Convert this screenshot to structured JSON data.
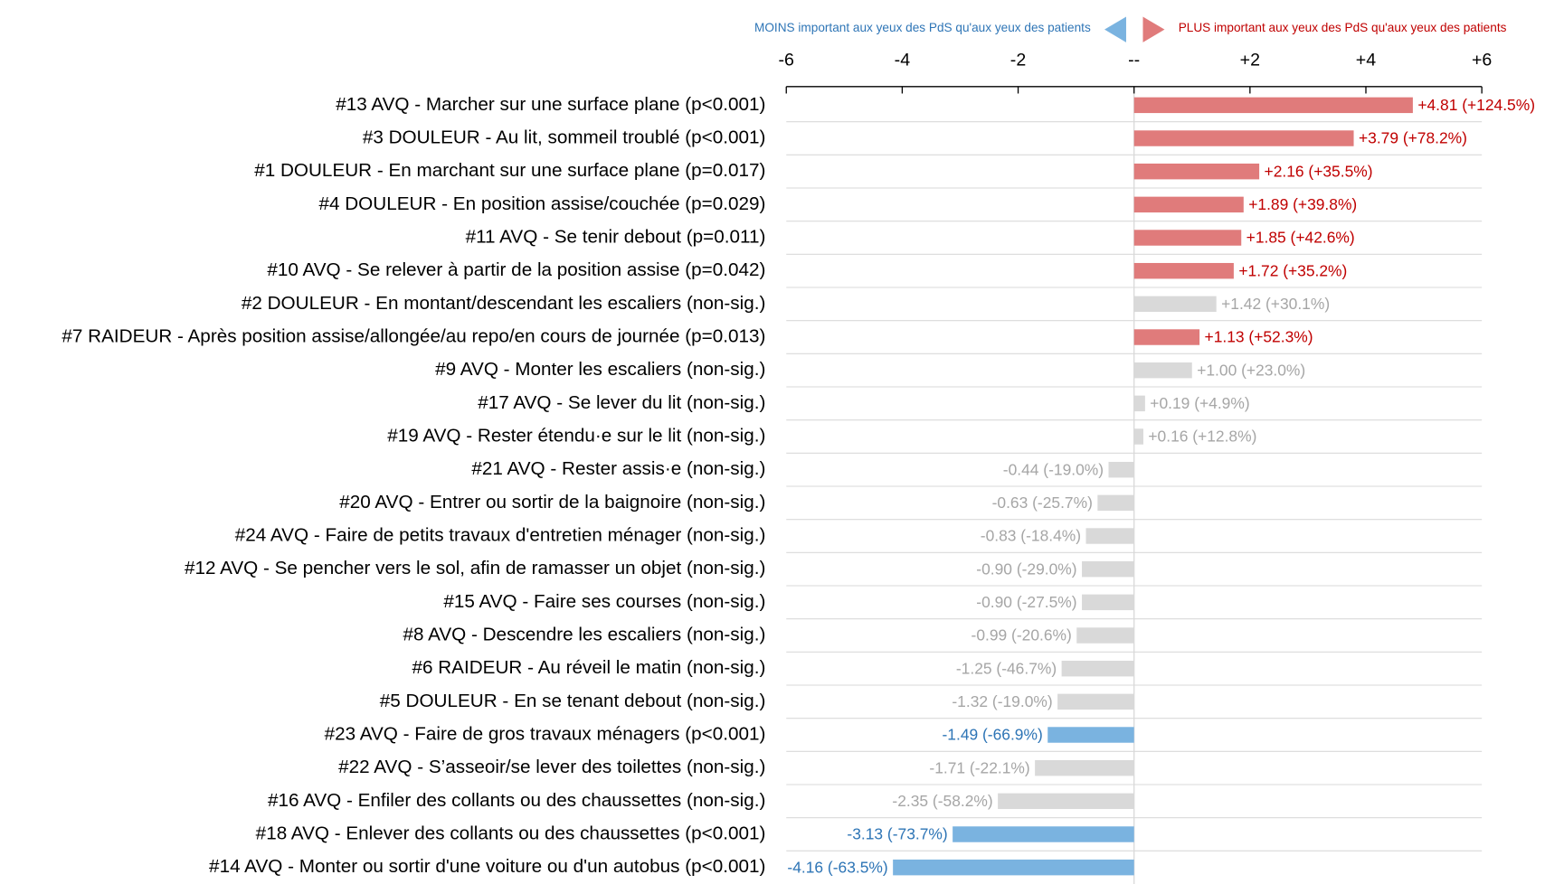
{
  "chart_data": {
    "type": "diverging-bar",
    "annotations": [
      "MOINS important aux yeux des PdS qu'aux yeux des patients",
      "PLUS important aux yeux des PdS qu'aux yeux des patients"
    ],
    "annotation_colors": [
      "#2e75b6",
      "#c00000"
    ],
    "categories": [
      "#13 AVQ - Marcher sur une surface plane (p<0.001)",
      "#3 DOULEUR - Au lit, sommeil troublé (p<0.001)",
      "#1 DOULEUR - En marchant sur une surface plane (p=0.017)",
      "#4 DOULEUR - En position assise/couchée (p=0.029)",
      "#11 AVQ - Se tenir debout (p=0.011)",
      "#10 AVQ - Se relever à partir de la position assise (p=0.042)",
      "#2 DOULEUR - En montant/descendant les escaliers (non-sig.)",
      "#7 RAIDEUR - Après position assise/allongée/au repo/en cours de journée (p=0.013)",
      "#9 AVQ - Monter les escaliers (non-sig.)",
      "#17 AVQ - Se lever du lit (non-sig.)",
      "#19 AVQ - Rester étendu·e sur le lit (non-sig.)",
      "#21 AVQ - Rester assis·e (non-sig.)",
      "#20 AVQ - Entrer ou sortir de la baignoire (non-sig.)",
      "#24 AVQ - Faire de petits travaux d'entretien ménager (non-sig.)",
      "#12 AVQ - Se pencher vers le sol, afin de ramasser un objet (non-sig.)",
      "#15 AVQ - Faire ses courses (non-sig.)",
      "#8 AVQ - Descendre les escaliers (non-sig.)",
      "#6 RAIDEUR - Au réveil le matin (non-sig.)",
      "#5 DOULEUR - En se tenant debout (non-sig.)",
      "#23 AVQ - Faire de gros travaux ménagers (p<0.001)",
      "#22 AVQ - S’asseoir/se lever des toilettes (non-sig.)",
      "#16 AVQ - Enfiler des collants ou des chaussettes (non-sig.)",
      "#18 AVQ - Enlever des collants ou des chaussettes (p<0.001)",
      "#14 AVQ - Monter ou sortir d'une voiture ou d'un autobus (p<0.001)"
    ],
    "values": [
      4.81,
      3.79,
      2.16,
      1.89,
      1.85,
      1.72,
      1.42,
      1.13,
      1.0,
      0.19,
      0.16,
      -0.44,
      -0.63,
      -0.83,
      -0.9,
      -0.9,
      -0.99,
      -1.25,
      -1.32,
      -1.49,
      -1.71,
      -2.35,
      -3.13,
      -4.16
    ],
    "value_labels": [
      "+4.81 (+124.5%)",
      "+3.79 (+78.2%)",
      "+2.16 (+35.5%)",
      "+1.89 (+39.8%)",
      "+1.85 (+42.6%)",
      "+1.72 (+35.2%)",
      "+1.42 (+30.1%)",
      "+1.13 (+52.3%)",
      "+1.00 (+23.0%)",
      "+0.19 (+4.9%)",
      "+0.16 (+12.8%)",
      "-0.44 (-19.0%)",
      "-0.63 (-25.7%)",
      "-0.83 (-18.4%)",
      "-0.90 (-29.0%)",
      "-0.90 (-27.5%)",
      "-0.99 (-20.6%)",
      "-1.25 (-46.7%)",
      "-1.32 (-19.0%)",
      "-1.49 (-66.9%)",
      "-1.71 (-22.1%)",
      "-2.35 (-58.2%)",
      "-3.13 (-73.7%)",
      "-4.16 (-63.5%)"
    ],
    "colors": [
      "#e07b7b",
      "#e07b7b",
      "#e07b7b",
      "#e07b7b",
      "#e07b7b",
      "#e07b7b",
      "#d9d9d9",
      "#e07b7b",
      "#d9d9d9",
      "#d9d9d9",
      "#d9d9d9",
      "#d9d9d9",
      "#d9d9d9",
      "#d9d9d9",
      "#d9d9d9",
      "#d9d9d9",
      "#d9d9d9",
      "#d9d9d9",
      "#d9d9d9",
      "#7ab3e0",
      "#d9d9d9",
      "#d9d9d9",
      "#7ab3e0",
      "#7ab3e0"
    ],
    "label_colors": [
      "#c00000",
      "#c00000",
      "#c00000",
      "#c00000",
      "#c00000",
      "#c00000",
      "#a6a6a6",
      "#c00000",
      "#a6a6a6",
      "#a6a6a6",
      "#a6a6a6",
      "#a6a6a6",
      "#a6a6a6",
      "#a6a6a6",
      "#a6a6a6",
      "#a6a6a6",
      "#a6a6a6",
      "#a6a6a6",
      "#a6a6a6",
      "#2e75b6",
      "#a6a6a6",
      "#a6a6a6",
      "#2e75b6",
      "#2e75b6"
    ],
    "xlim": [
      -6,
      6
    ],
    "xticks": [
      -6,
      -4,
      -2,
      {
        "value": 0,
        "label": "--"
      },
      {
        "value": 2,
        "label": "+2"
      },
      {
        "value": 4,
        "label": "+4"
      },
      {
        "value": 6,
        "label": "+6"
      }
    ],
    "grid": true
  }
}
